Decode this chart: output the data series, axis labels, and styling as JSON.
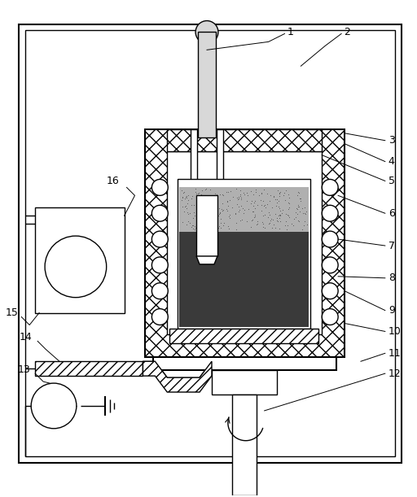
{
  "fig_width": 5.12,
  "fig_height": 6.11,
  "dpi": 100,
  "bg_color": "white",
  "lc": "black",
  "lw": 1.0,
  "lw2": 1.5,
  "lw3": 0.7
}
